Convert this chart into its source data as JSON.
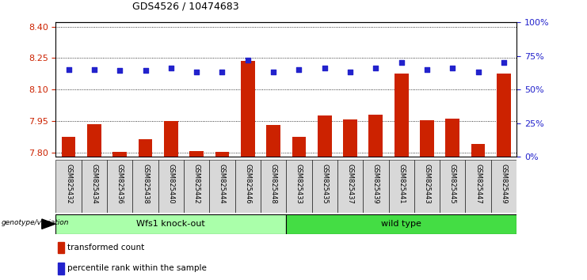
{
  "title": "GDS4526 / 10474683",
  "samples": [
    "GSM825432",
    "GSM825434",
    "GSM825436",
    "GSM825438",
    "GSM825440",
    "GSM825442",
    "GSM825444",
    "GSM825446",
    "GSM825448",
    "GSM825433",
    "GSM825435",
    "GSM825437",
    "GSM825439",
    "GSM825441",
    "GSM825443",
    "GSM825445",
    "GSM825447",
    "GSM825449"
  ],
  "red_values": [
    7.875,
    7.935,
    7.805,
    7.865,
    7.95,
    7.808,
    7.803,
    8.235,
    7.93,
    7.875,
    7.975,
    7.958,
    7.98,
    8.175,
    7.953,
    7.962,
    7.842,
    8.175
  ],
  "blue_percentiles": [
    65,
    65,
    64,
    64,
    66,
    63,
    63,
    72,
    63,
    65,
    66,
    63,
    66,
    70,
    65,
    66,
    63,
    70
  ],
  "ylim_left": [
    7.78,
    8.42
  ],
  "ylim_right": [
    0,
    100
  ],
  "yticks_left": [
    7.8,
    7.95,
    8.1,
    8.25,
    8.4
  ],
  "yticks_right": [
    0,
    25,
    50,
    75,
    100
  ],
  "group1_label": "Wfs1 knock-out",
  "group2_label": "wild type",
  "group1_count": 9,
  "group2_count": 9,
  "red_color": "#cc2200",
  "blue_color": "#2222cc",
  "group1_bg": "#aaffaa",
  "group2_bg": "#44dd44",
  "label_bg": "#d8d8d8",
  "bar_width": 0.55,
  "genotype_label": "genotype/variation",
  "legend_red": "transformed count",
  "legend_blue": "percentile rank within the sample"
}
